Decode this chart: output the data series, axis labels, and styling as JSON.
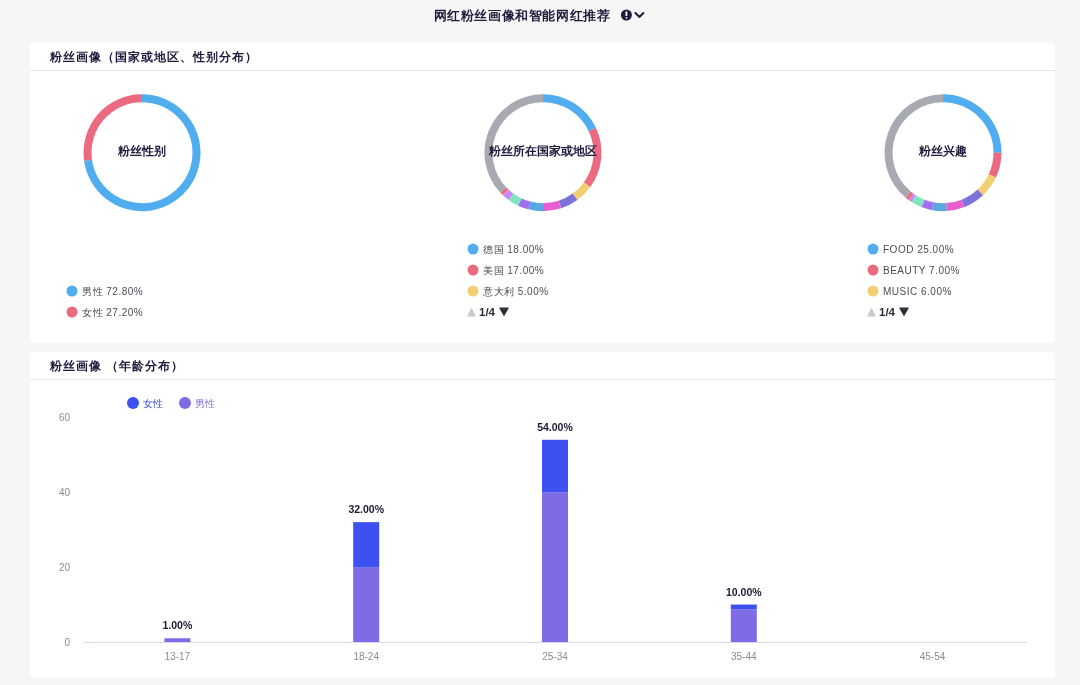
{
  "chart_data": [
    {
      "type": "other",
      "title": "网红粉丝画像和智能网红推荐",
      "subtitle": "粉丝画像（国家或地区、性别分布）"
    },
    {
      "type": "donut",
      "title": "粉丝性别",
      "categories": [
        "男性",
        "女性"
      ],
      "values": [
        72.8,
        27.2
      ],
      "value_labels": [
        "72.80%",
        "27.20%"
      ],
      "colors": [
        "#4fadf0",
        "#ec6a7f"
      ],
      "legend": "bottom"
    },
    {
      "type": "donut",
      "title": "粉丝所在国家或地区",
      "annotations": [
        "1/4"
      ],
      "categories": [
        "德国",
        "美国",
        "意大利",
        null,
        null,
        null,
        null,
        null,
        null,
        null,
        null
      ],
      "values": [
        18,
        17,
        5,
        5,
        5,
        4,
        3,
        3,
        2,
        1,
        37
      ],
      "value_labels": [
        "18.00%",
        "17.00%",
        "5.00%",
        null,
        null,
        null,
        null,
        null,
        null,
        null,
        null
      ],
      "colors": [
        "#4fadf0",
        "#ec6a7f",
        "#f2cf72",
        "#7b73da",
        "#ea5fcf",
        "#5ba7e2",
        "#a16ff0",
        "#7fe6c0",
        "#c98af5",
        "#ec6a7f",
        "#a8aab1"
      ],
      "legend": "bottom"
    },
    {
      "type": "donut",
      "title": "粉丝兴趣",
      "annotations": [
        "1/4"
      ],
      "categories": [
        "FOOD",
        "BEAUTY",
        "MUSIC",
        null,
        null,
        null,
        null,
        null,
        null,
        null,
        null
      ],
      "values": [
        25,
        7,
        6,
        6,
        5,
        4,
        3,
        3,
        1,
        1,
        39
      ],
      "value_labels": [
        "25.00%",
        "7.00%",
        "6.00%",
        null,
        null,
        null,
        null,
        null,
        null,
        null,
        null
      ],
      "colors": [
        "#4fadf0",
        "#ec6a7f",
        "#f2cf72",
        "#7b73da",
        "#ea5fcf",
        "#5ba7e2",
        "#a16ff0",
        "#7fe6c0",
        "#c98af5",
        "#ec6a7f",
        "#a8aab1"
      ],
      "legend": "bottom"
    },
    {
      "type": "bar",
      "title": "粉丝画像 （年龄分布）",
      "categories": [
        "13-17",
        "18-24",
        "25-34",
        "35-44",
        "45-54"
      ],
      "stacked": true,
      "series": [
        {
          "name": "男性",
          "color": "#7f6be6",
          "values": [
            1,
            20,
            40,
            8.7,
            0
          ]
        },
        {
          "name": "女性",
          "color": "#3d50f0",
          "values": [
            0,
            12,
            14,
            1.3,
            0
          ]
        }
      ],
      "totals": [
        "1.00%",
        "32.00%",
        "54.00%",
        "10.00%",
        null
      ],
      "ylim": [
        0,
        60
      ],
      "yticks": [
        0,
        20,
        40,
        60
      ],
      "legend": "top left"
    }
  ]
}
